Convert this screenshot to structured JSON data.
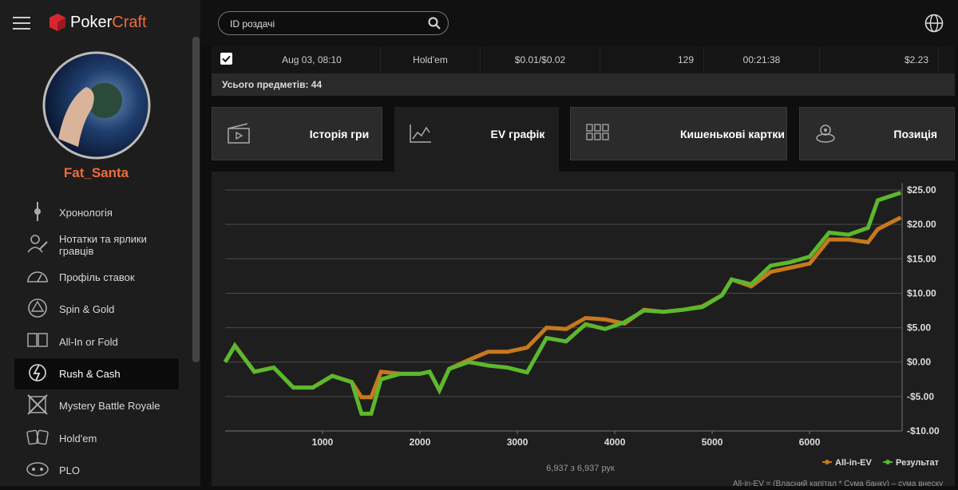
{
  "header": {
    "logo": "Poker",
    "logo_accent": "Craft",
    "search_placeholder": "ID роздачі"
  },
  "sidebar": {
    "username": "Fat_Santa",
    "menu": [
      "Хронологія",
      "Нотатки та ярлики гравців",
      "Профіль ставок",
      "Spin & Gold",
      "All-In or Fold",
      "Rush & Cash",
      "Mystery Battle Royale",
      "Hold'em",
      "PLO"
    ]
  },
  "table_row": [
    "Aug 03, 08:10",
    "Hold'em",
    "$0.01/$0.02",
    "129",
    "00:21:38",
    "$2.23"
  ],
  "total": "Усього предметів: 44",
  "tabs": [
    "Історія гри",
    "EV графік",
    "Кишенькові картки",
    "Позиція"
  ],
  "chart_data": {
    "type": "line",
    "x": [
      0,
      100,
      300,
      500,
      700,
      900,
      1100,
      1300,
      1400,
      1500,
      1600,
      1800,
      2000,
      2100,
      2200,
      2300,
      2500,
      2700,
      2900,
      3100,
      3300,
      3500,
      3700,
      3900,
      4100,
      4300,
      4500,
      4700,
      4900,
      5100,
      5200,
      5400,
      5600,
      5800,
      6000,
      6200,
      6400,
      6600,
      6700,
      6937
    ],
    "series": [
      {
        "name": "All-in-EV",
        "color": "#c8781e",
        "values": [
          0,
          2.4,
          -1.4,
          -0.8,
          -3.7,
          -3.7,
          -2,
          -2.9,
          -5.1,
          -5.1,
          -1.4,
          -1.7,
          -1.7,
          -1.4,
          -4.1,
          -1,
          0.3,
          1.5,
          1.5,
          2.1,
          5,
          4.8,
          6.4,
          6.2,
          5.6,
          7.6,
          7.3,
          7.6,
          8.1,
          9.7,
          12,
          11,
          13.1,
          13.7,
          14.3,
          17.8,
          17.8,
          17.4,
          19.3,
          21
        ]
      },
      {
        "name": "Результат",
        "color": "#5cb82c",
        "values": [
          0,
          2.4,
          -1.4,
          -0.8,
          -3.7,
          -3.7,
          -2,
          -2.9,
          -7.5,
          -7.5,
          -2.5,
          -1.7,
          -1.7,
          -1.4,
          -4.1,
          -1,
          0,
          -0.5,
          -0.8,
          -1.5,
          3.5,
          3,
          5.5,
          4.8,
          5.8,
          7.5,
          7.3,
          7.6,
          8,
          9.7,
          12,
          11.3,
          14,
          14.5,
          15.3,
          18.8,
          18.5,
          19.5,
          23.5,
          24.6
        ]
      }
    ],
    "xlim": [
      0,
      6950
    ],
    "xticks": [
      1000,
      2000,
      3000,
      4000,
      5000,
      6000
    ],
    "ylim": [
      -10,
      26
    ],
    "yticks": [
      {
        "value": -10,
        "label": "-$10.00"
      },
      {
        "value": -5,
        "label": "-$5.00"
      },
      {
        "value": 0,
        "label": "$0.00"
      },
      {
        "value": 5,
        "label": "$5.00"
      },
      {
        "value": 10,
        "label": "$10.00"
      },
      {
        "value": 15,
        "label": "$15.00"
      },
      {
        "value": 20,
        "label": "$20.00"
      },
      {
        "value": 25,
        "label": "$25.00"
      }
    ],
    "grid": true,
    "legend": "bottom-right",
    "hands_count": "6,937 з 6,937 рук",
    "footnote": "All-in-EV = (Власний капітал * Сума банку) – сума внеску"
  }
}
